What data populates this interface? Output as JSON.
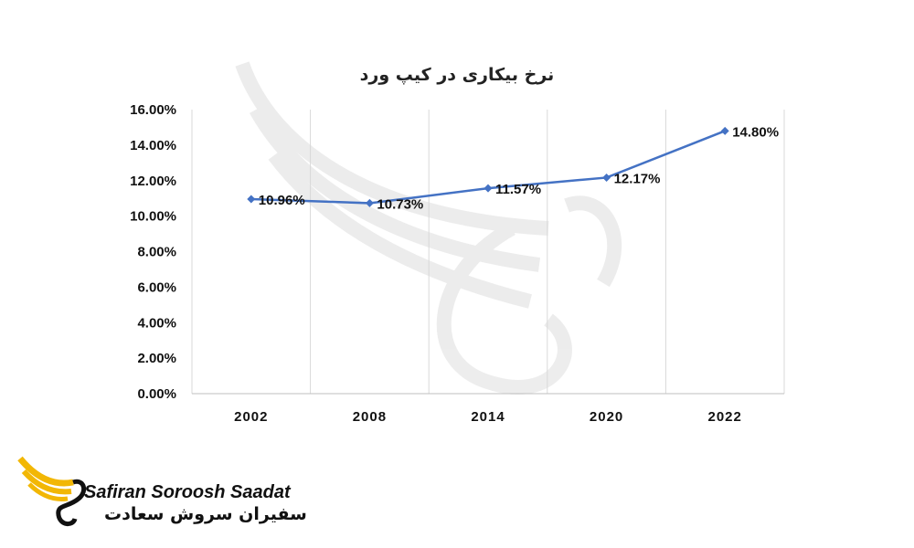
{
  "chart_data": {
    "type": "line",
    "title": "نرخ بیکاری در کیپ ورد",
    "categories": [
      "2002",
      "2008",
      "2014",
      "2020",
      "2022"
    ],
    "values": [
      10.96,
      10.73,
      11.57,
      12.17,
      14.8
    ],
    "data_labels": [
      "10.96%",
      "10.73%",
      "11.57%",
      "12.17%",
      "14.80%"
    ],
    "yticks": [
      "0.00%",
      "2.00%",
      "4.00%",
      "6.00%",
      "8.00%",
      "10.00%",
      "12.00%",
      "14.00%",
      "16.00%"
    ],
    "ylim": [
      0,
      16
    ],
    "grid": "vertical",
    "legend": "none",
    "line_color": "#4472c4"
  },
  "logo": {
    "text_en": "Safiran Soroosh Saadat",
    "text_fa": "سفیران سروش سعادت",
    "accent_color": "#f2b705"
  }
}
